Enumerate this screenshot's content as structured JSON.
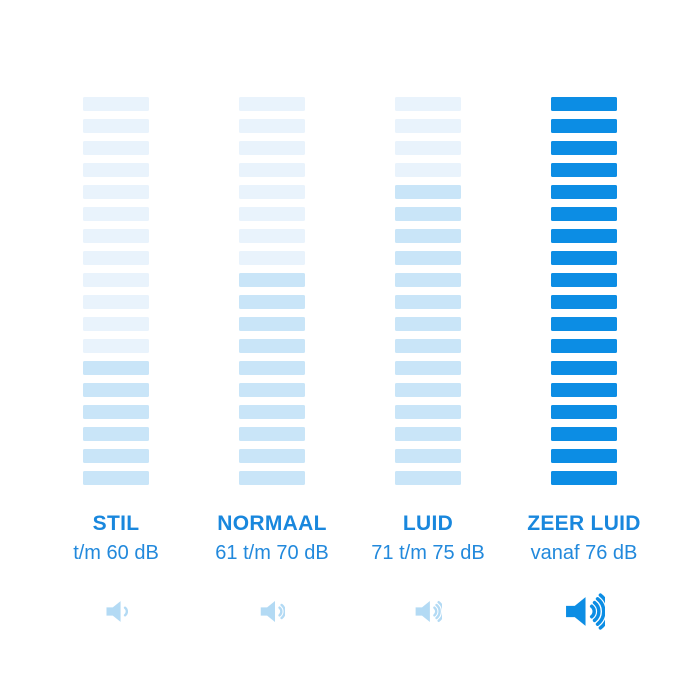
{
  "page": {
    "background": "#ffffff"
  },
  "palette": {
    "bar_empty": "#e9f3fc",
    "bar_filled_light": "#c9e5f8",
    "bar_filled_strong": "#0c8de4",
    "label_color": "#1987dd",
    "range_color": "#2289dc",
    "icon_light": "#b3daf4",
    "icon_strong": "#0c8de4"
  },
  "columns": [
    {
      "id": "stil",
      "label": "STIL",
      "range": "t/m 60 dB",
      "segments_total": 18,
      "segments_filled": 6,
      "fill_style": "light",
      "icon": "speaker-volume-low-icon",
      "icon_waves": 1,
      "icon_style": "light"
    },
    {
      "id": "normaal",
      "label": "NORMAAL",
      "range": "61 t/m 70 dB",
      "segments_total": 18,
      "segments_filled": 10,
      "fill_style": "light",
      "icon": "speaker-volume-medium-icon",
      "icon_waves": 2,
      "icon_style": "light"
    },
    {
      "id": "luid",
      "label": "LUID",
      "range": "71 t/m 75 dB",
      "segments_total": 18,
      "segments_filled": 14,
      "fill_style": "light",
      "icon": "speaker-volume-high-icon",
      "icon_waves": 3,
      "icon_style": "light"
    },
    {
      "id": "zeer-luid",
      "label": "ZEER LUID",
      "range": "vanaf 76 dB",
      "segments_total": 18,
      "segments_filled": 18,
      "fill_style": "strong",
      "icon": "speaker-volume-max-icon",
      "icon_waves": 4,
      "icon_style": "strong"
    }
  ],
  "chart_data": {
    "type": "bar",
    "title": "",
    "categories": [
      "STIL",
      "NORMAAL",
      "LUID",
      "ZEER LUID"
    ],
    "ranges_db": [
      "t/m 60 dB",
      "61 t/m 70 dB",
      "71 t/m 75 dB",
      "vanaf 76 dB"
    ],
    "series": [
      {
        "name": "filled_segments",
        "values": [
          6,
          10,
          14,
          18
        ]
      },
      {
        "name": "total_segments",
        "values": [
          18,
          18,
          18,
          18
        ]
      }
    ],
    "orientation": "vertical-segmented-columns",
    "grid": false,
    "legend_position": "none"
  }
}
